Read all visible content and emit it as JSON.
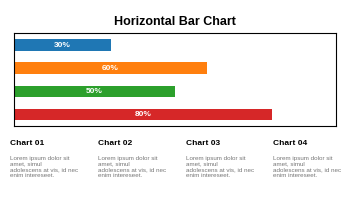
{
  "chart_data": {
    "type": "bar",
    "orientation": "horizontal",
    "title": "Horizontal Bar Chart",
    "categories": [
      null,
      null,
      null,
      null
    ],
    "values": [
      30,
      60,
      50,
      80
    ],
    "value_labels": [
      "30%",
      "60%",
      "50%",
      "80%"
    ],
    "data_labels": true,
    "xlim": [
      0,
      100
    ],
    "tick_labels": false,
    "annotations": [
      {
        "heading": "Chart 01",
        "text": "Lorem ipsum dolor sit\namet, simul\nadolescens at vis, id nec\nenim intereseet."
      },
      {
        "heading": "Chart 02",
        "text": "Lorem ipsum dolor sit\namet, simul\nadolescens at vis, id nec\nenim intereseet."
      },
      {
        "heading": "Chart 03",
        "text": "Lorem ipsum dolor sit\namet, simul\nadolescens at vis, id nec\nenim intereseet."
      },
      {
        "heading": "Chart 04",
        "text": "Lorem ipsum dolor sit\namet, simul\nadolescens at vis, id nec\nenim intereseet."
      }
    ]
  }
}
